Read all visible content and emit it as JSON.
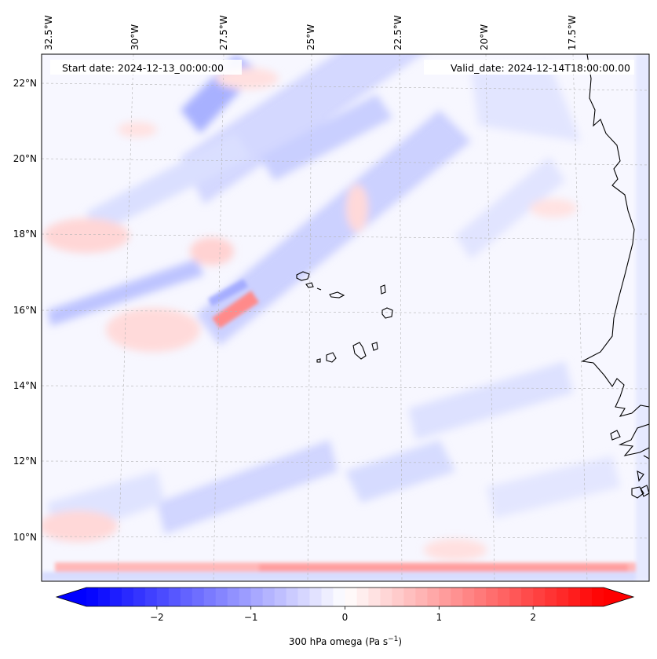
{
  "header": {
    "start_date": "Start date: 2024-12-13_00:00:00",
    "valid_date": "Valid_date: 2024-12-14T18:00:00.00"
  },
  "map": {
    "lon_labels": [
      "32.5°W",
      "30°W",
      "27.5°W",
      "25°W",
      "22.5°W",
      "20°W",
      "17.5°W"
    ],
    "lat_labels": [
      "22°N",
      "20°N",
      "18°N",
      "16°N",
      "14°N",
      "12°N",
      "10°N"
    ],
    "lat_range": [
      8.8,
      22.8
    ],
    "lon_range": [
      -33.0,
      -15.5
    ]
  },
  "colorbar": {
    "label_text": "300 hPa omega (Pa s",
    "label_exp": "−1",
    "label_tail": ")",
    "tick_labels": [
      "−2",
      "−1",
      "0",
      "1",
      "2"
    ],
    "range": [
      -2.75,
      2.75
    ],
    "colormap": "bwr",
    "extend": "both",
    "colors": {
      "min": "#0000ff",
      "mid": "#ffffff",
      "max": "#ff0000"
    }
  }
}
